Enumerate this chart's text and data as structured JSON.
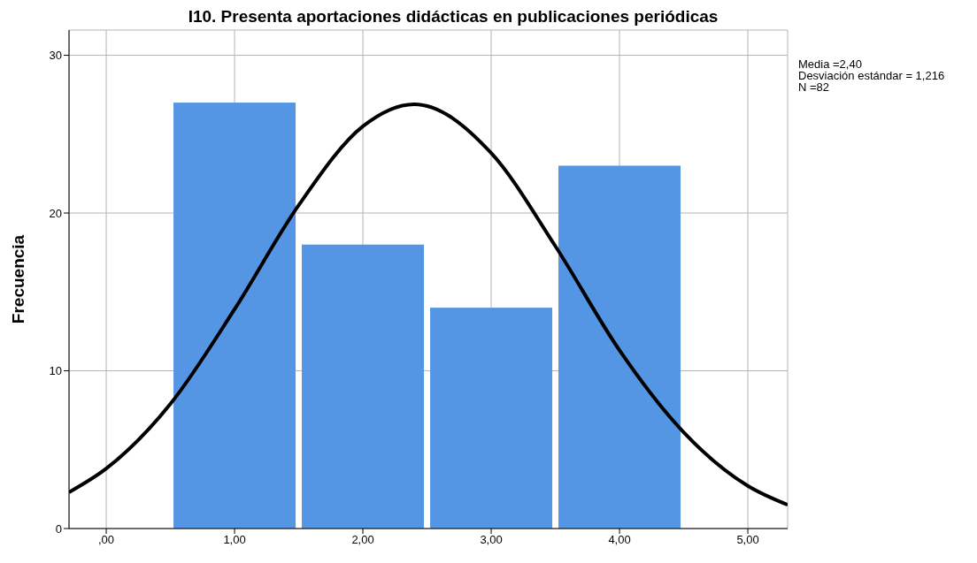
{
  "chart_data": {
    "type": "histogram",
    "title": "I10. Presenta aportaciones didácticas en publicaciones periódicas",
    "ylabel": "Frecuencia",
    "bins": [
      0.5,
      1.5,
      2.5,
      3.5,
      4.5
    ],
    "values": [
      27,
      18,
      14,
      23
    ],
    "color": "#5496e4",
    "series": [
      {
        "type": "line",
        "color": "#000000",
        "x": [
          -0.29,
          0,
          0.5,
          1,
          1.5,
          2,
          2.4,
          3,
          3.5,
          4,
          4.5,
          5,
          5.31
        ],
        "values": [
          2.3,
          3.8,
          7.9,
          13.9,
          20.5,
          25.5,
          26.9,
          23.8,
          17.9,
          11.3,
          6.1,
          2.7,
          1.5
        ]
      }
    ],
    "xlim": [
      -0.29,
      5.31
    ],
    "xticks": [
      {
        "value": 0,
        "label": ",00"
      },
      {
        "value": 1,
        "label": "1,00"
      },
      {
        "value": 2,
        "label": "2,00"
      },
      {
        "value": 3,
        "label": "3,00"
      },
      {
        "value": 4,
        "label": "4,00"
      },
      {
        "value": 5,
        "label": "5,00"
      }
    ],
    "ylim": [
      0,
      31.6
    ],
    "yticks": [
      0,
      10,
      20,
      30
    ],
    "grid": true,
    "annotations": [
      "Media =2,40",
      "Desviación estándar = 1,216",
      "N =82"
    ]
  }
}
